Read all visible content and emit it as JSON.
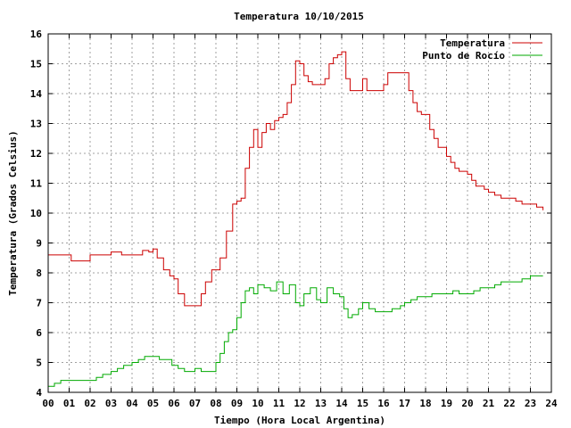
{
  "chart_data": {
    "type": "line",
    "title": "Temperatura 10/10/2015",
    "xlabel": "Tiempo (Hora Local Argentina)",
    "ylabel": "Temperatura (Grados Celsius)",
    "xlim": [
      0,
      24
    ],
    "ylim": [
      4,
      16
    ],
    "grid": true,
    "legend_position": "top-right",
    "x_ticks": [
      "00",
      "01",
      "02",
      "03",
      "04",
      "05",
      "06",
      "07",
      "08",
      "09",
      "10",
      "11",
      "12",
      "13",
      "14",
      "15",
      "16",
      "17",
      "18",
      "19",
      "20",
      "21",
      "22",
      "23",
      "24"
    ],
    "y_ticks": [
      "4",
      "5",
      "6",
      "7",
      "8",
      "9",
      "10",
      "11",
      "12",
      "13",
      "14",
      "15",
      "16"
    ],
    "series": [
      {
        "name": "Temperatura",
        "color": "#cc0000",
        "x": [
          0,
          0.5,
          1,
          1.1,
          2,
          3,
          3.5,
          4,
          4.3,
          4.5,
          4.8,
          5,
          5.2,
          5.5,
          5.8,
          6,
          6.2,
          6.5,
          6.8,
          7,
          7.3,
          7.5,
          7.8,
          8,
          8.2,
          8.5,
          8.8,
          9,
          9.2,
          9.4,
          9.6,
          9.8,
          10,
          10.2,
          10.4,
          10.6,
          10.8,
          11,
          11.2,
          11.4,
          11.6,
          11.8,
          12,
          12.2,
          12.4,
          12.6,
          12.8,
          13,
          13.2,
          13.4,
          13.6,
          13.8,
          14,
          14.2,
          14.4,
          14.6,
          14.8,
          15,
          15.2,
          15.4,
          15.6,
          15.8,
          16,
          16.2,
          16.4,
          16.6,
          16.8,
          17,
          17.2,
          17.4,
          17.6,
          17.8,
          18,
          18.2,
          18.4,
          18.6,
          18.8,
          19,
          19.2,
          19.4,
          19.6,
          19.8,
          20,
          20.2,
          20.4,
          20.6,
          20.8,
          21,
          21.3,
          21.6,
          22,
          22.3,
          22.6,
          23,
          23.3,
          23.6
        ],
        "values": [
          8.6,
          8.6,
          8.6,
          8.4,
          8.6,
          8.7,
          8.6,
          8.6,
          8.6,
          8.75,
          8.7,
          8.8,
          8.5,
          8.1,
          7.9,
          7.8,
          7.3,
          6.9,
          6.9,
          6.9,
          7.3,
          7.7,
          8.1,
          8.1,
          8.5,
          9.4,
          10.3,
          10.4,
          10.5,
          11.5,
          12.2,
          12.8,
          12.2,
          12.7,
          13.0,
          12.8,
          13.1,
          13.2,
          13.3,
          13.7,
          14.3,
          15.1,
          15.0,
          14.6,
          14.4,
          14.3,
          14.3,
          14.3,
          14.5,
          15.0,
          15.2,
          15.3,
          15.4,
          14.5,
          14.1,
          14.1,
          14.1,
          14.5,
          14.1,
          14.1,
          14.1,
          14.1,
          14.3,
          14.7,
          14.7,
          14.7,
          14.7,
          14.7,
          14.1,
          13.7,
          13.4,
          13.3,
          13.3,
          12.8,
          12.5,
          12.2,
          12.2,
          11.9,
          11.7,
          11.5,
          11.4,
          11.4,
          11.3,
          11.1,
          10.9,
          10.9,
          10.8,
          10.7,
          10.6,
          10.5,
          10.5,
          10.4,
          10.3,
          10.3,
          10.2,
          10.1
        ]
      },
      {
        "name": "Punto de Rocío",
        "color": "#00aa00",
        "x": [
          0,
          0.3,
          0.6,
          1,
          1.5,
          2,
          2.3,
          2.6,
          3,
          3.3,
          3.6,
          4,
          4.3,
          4.6,
          5,
          5.3,
          5.6,
          5.9,
          6.2,
          6.5,
          6.8,
          7,
          7.3,
          7.6,
          8,
          8.2,
          8.4,
          8.6,
          8.8,
          9,
          9.2,
          9.4,
          9.6,
          9.8,
          10,
          10.3,
          10.6,
          10.9,
          11.2,
          11.5,
          11.8,
          12,
          12.2,
          12.5,
          12.8,
          13,
          13.3,
          13.6,
          13.9,
          14.1,
          14.3,
          14.5,
          14.8,
          15,
          15.3,
          15.6,
          16,
          16.4,
          16.8,
          17,
          17.3,
          17.6,
          18,
          18.3,
          18.6,
          19,
          19.3,
          19.6,
          20,
          20.3,
          20.6,
          21,
          21.3,
          21.6,
          22,
          22.3,
          22.6,
          23,
          23.3,
          23.6
        ],
        "values": [
          4.2,
          4.3,
          4.4,
          4.4,
          4.4,
          4.4,
          4.5,
          4.6,
          4.7,
          4.8,
          4.9,
          5.0,
          5.1,
          5.2,
          5.2,
          5.1,
          5.1,
          4.9,
          4.8,
          4.7,
          4.7,
          4.8,
          4.7,
          4.7,
          5.0,
          5.3,
          5.7,
          6.0,
          6.1,
          6.5,
          7.0,
          7.4,
          7.5,
          7.3,
          7.6,
          7.5,
          7.4,
          7.7,
          7.3,
          7.6,
          7.0,
          6.9,
          7.3,
          7.5,
          7.1,
          7.0,
          7.5,
          7.3,
          7.2,
          6.8,
          6.5,
          6.6,
          6.8,
          7.0,
          6.8,
          6.7,
          6.7,
          6.8,
          6.9,
          7.0,
          7.1,
          7.2,
          7.2,
          7.3,
          7.3,
          7.3,
          7.4,
          7.3,
          7.3,
          7.4,
          7.5,
          7.5,
          7.6,
          7.7,
          7.7,
          7.7,
          7.8,
          7.9,
          7.9,
          7.9
        ]
      }
    ]
  }
}
